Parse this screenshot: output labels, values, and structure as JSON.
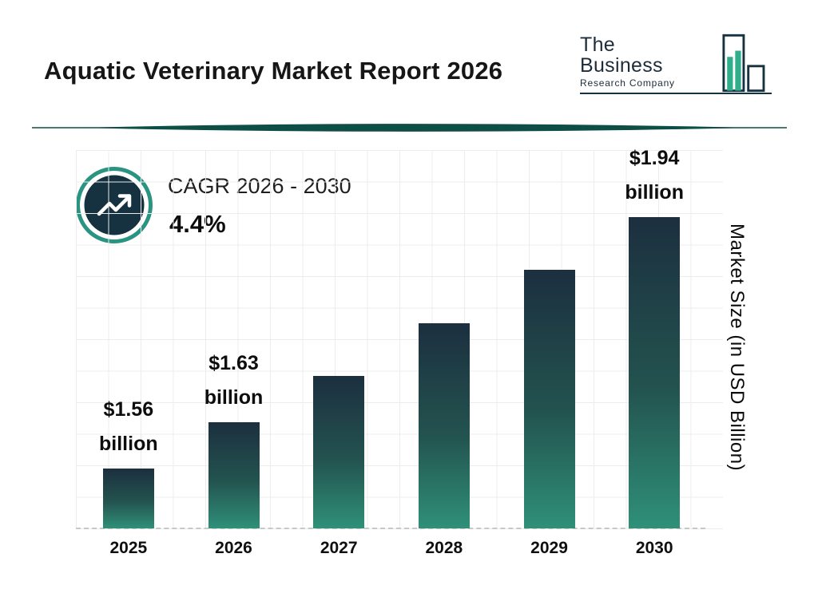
{
  "header": {
    "title": "Aquatic Veterinary Market Report 2026",
    "logo": {
      "line1": "The Business",
      "line2": "Research Company"
    }
  },
  "chart_data": {
    "type": "bar",
    "title": "Aquatic Veterinary Market Report 2026",
    "categories": [
      "2025",
      "2026",
      "2027",
      "2028",
      "2029",
      "2030"
    ],
    "values": [
      1.56,
      1.63,
      1.7,
      1.78,
      1.86,
      1.94
    ],
    "unit": "USD Billion",
    "bar_labels": [
      {
        "amount": "$1.56",
        "unit": "billion"
      },
      {
        "amount": "$1.63",
        "unit": "billion"
      },
      null,
      null,
      null,
      {
        "amount": "$1.94",
        "unit": "billion"
      }
    ],
    "xlabel": "",
    "ylabel": "Market Size (in USD Billion)",
    "cagr_label": "CAGR 2026 - 2030",
    "cagr_value": "4.4%",
    "grid": true,
    "legend": "none",
    "baseline_value": 1.47,
    "colors": {
      "bar_gradient_top": "#1c2f3f",
      "bar_gradient_bottom": "#2f9078",
      "accent_teal": "#2b9381",
      "dark_navy": "#16313f",
      "divider_teal": "#0d4f47",
      "grid_gray": "#ececec"
    }
  }
}
